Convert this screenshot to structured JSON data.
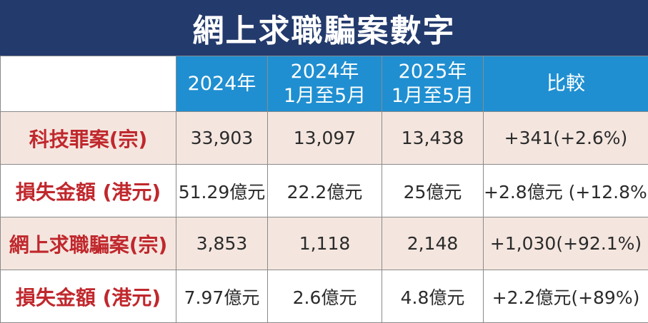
{
  "title": "網上求職騙案數字",
  "colors": {
    "title_bg": "#233a6c",
    "header_bg": "#1f8fd1",
    "row_label_text": "#c0282d",
    "shaded_row_bg": "#f4e6df"
  },
  "columns": [
    {
      "line1": "2024年",
      "line2": ""
    },
    {
      "line1": "2024年",
      "line2": "1月至5月"
    },
    {
      "line1": "2025年",
      "line2": "1月至5月"
    },
    {
      "line1": "比較",
      "line2": ""
    }
  ],
  "rows": [
    {
      "label": "科技罪案(宗)",
      "values": [
        "33,903",
        "13,097",
        "13,438",
        "+341(+2.6%)"
      ]
    },
    {
      "label": "損失金額 (港元)",
      "values": [
        "51.29億元",
        "22.2億元",
        "25億元",
        "+2.8億元 (+12.8%)"
      ]
    },
    {
      "label": "網上求職騙案(宗)",
      "values": [
        "3,853",
        "1,118",
        "2,148",
        "+1,030(+92.1%)"
      ]
    },
    {
      "label": "損失金額 (港元)",
      "values": [
        "7.97億元",
        "2.6億元",
        "4.8億元",
        "+2.2億元(+89%)"
      ]
    }
  ]
}
